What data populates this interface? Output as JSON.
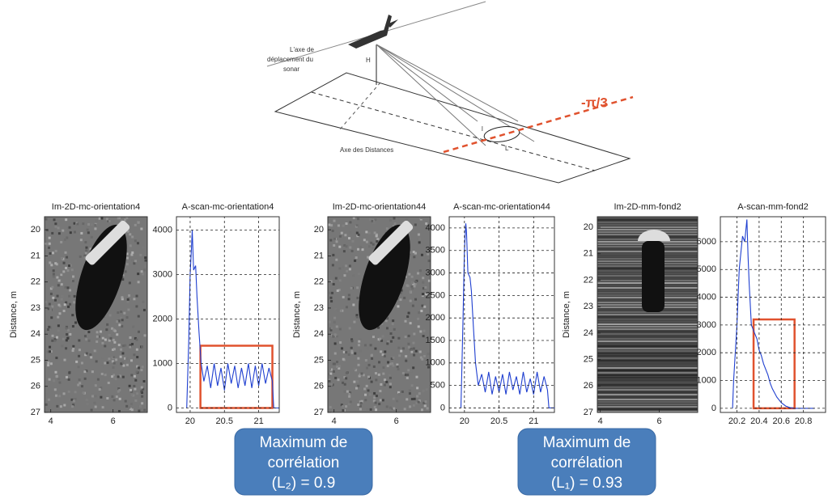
{
  "diagram": {
    "axis_label": [
      "L'axe de",
      "déplacement du",
      "sonar"
    ],
    "height_label": "H",
    "range_axis_label": "Axe des Distances",
    "length_label": "L",
    "width_label": "l",
    "angle_label": "-π/3"
  },
  "chart_data": [
    {
      "type": "image",
      "title": "Im-2D-mc-orientation4",
      "ylabel": "Distance, m",
      "yreversed": true,
      "ylim": [
        19.5,
        27
      ],
      "yticks": [
        20,
        21,
        22,
        23,
        24,
        25,
        26,
        27
      ],
      "xlim": [
        3.8,
        7.1
      ],
      "xticks": [
        4,
        6
      ]
    },
    {
      "type": "line",
      "title": "A-scan-mc-orientation4",
      "grid": true,
      "color": "#1f3fd0",
      "x": [
        19.95,
        19.98,
        20.0,
        20.02,
        20.03,
        20.05,
        20.08,
        20.1,
        20.13,
        20.16,
        20.2,
        20.25,
        20.3,
        20.35,
        20.4,
        20.45,
        20.5,
        20.55,
        20.6,
        20.65,
        20.7,
        20.75,
        20.8,
        20.85,
        20.9,
        20.95,
        21.0,
        21.05,
        21.1,
        21.15,
        21.2,
        21.22,
        21.3
      ],
      "values": [
        0,
        1500,
        3000,
        3600,
        4000,
        3100,
        3200,
        2500,
        1700,
        1000,
        600,
        950,
        450,
        1000,
        500,
        900,
        400,
        1000,
        550,
        950,
        450,
        900,
        500,
        1000,
        450,
        950,
        500,
        1000,
        550,
        900,
        600,
        0,
        0
      ],
      "xlim": [
        19.8,
        21.3
      ],
      "xticks": [
        20,
        20.5,
        21
      ],
      "ylim": [
        -100,
        4300
      ],
      "yticks": [
        0,
        1000,
        2000,
        3000,
        4000
      ],
      "highlight": {
        "color": "#e0522e",
        "x": [
          20.15,
          21.2
        ],
        "y": [
          0,
          1400
        ]
      }
    },
    {
      "type": "image",
      "title": "Im-2D-mc-orientation44",
      "ylabel": "Distance, m",
      "yreversed": true,
      "ylim": [
        19.5,
        27
      ],
      "yticks": [
        20,
        21,
        22,
        23,
        24,
        25,
        26,
        27
      ],
      "xlim": [
        3.8,
        7.1
      ],
      "xticks": [
        4,
        6
      ]
    },
    {
      "type": "line",
      "title": "A-scan-mc-orientation44",
      "grid": true,
      "color": "#1f3fd0",
      "x": [
        19.95,
        19.98,
        20.0,
        20.02,
        20.03,
        20.05,
        20.08,
        20.1,
        20.13,
        20.16,
        20.2,
        20.25,
        20.3,
        20.35,
        20.4,
        20.45,
        20.5,
        20.55,
        20.6,
        20.65,
        20.7,
        20.75,
        20.8,
        20.85,
        20.9,
        20.95,
        21.0,
        21.05,
        21.1,
        21.15,
        21.2,
        21.22,
        21.3
      ],
      "values": [
        0,
        2000,
        3500,
        4100,
        3900,
        3000,
        2900,
        2600,
        1800,
        1000,
        500,
        750,
        350,
        800,
        300,
        700,
        350,
        750,
        300,
        800,
        400,
        700,
        300,
        800,
        350,
        650,
        300,
        800,
        350,
        700,
        400,
        0,
        0
      ],
      "xlim": [
        19.78,
        21.3
      ],
      "xticks": [
        20,
        20.5,
        21
      ],
      "ylim": [
        -100,
        4250
      ],
      "yticks": [
        0,
        500,
        1000,
        1500,
        2000,
        2500,
        3000,
        3500,
        4000
      ]
    },
    {
      "type": "image",
      "title": "Im-2D-mm-fond2",
      "ylabel": "Distance, m",
      "yreversed": true,
      "ylim": [
        19.6,
        27
      ],
      "yticks": [
        20,
        21,
        22,
        23,
        24,
        25,
        26,
        27
      ],
      "xlim": [
        3.9,
        7.3
      ],
      "xticks": [
        4,
        6
      ]
    },
    {
      "type": "line",
      "title": "A-scan-mm-fond2",
      "grid": true,
      "color": "#1f3fd0",
      "x": [
        20.16,
        20.17,
        20.2,
        20.22,
        20.25,
        20.27,
        20.29,
        20.3,
        20.31,
        20.33,
        20.34,
        20.36,
        20.38,
        20.4,
        20.42,
        20.44,
        20.46,
        20.48,
        20.5,
        20.52,
        20.56,
        20.6,
        20.64,
        20.68,
        20.72,
        20.9
      ],
      "values": [
        0,
        1000,
        3000,
        5000,
        6200,
        6000,
        6800,
        5500,
        4500,
        3000,
        2900,
        2700,
        2500,
        2100,
        1900,
        1600,
        1400,
        1200,
        900,
        700,
        400,
        200,
        80,
        20,
        0,
        0
      ],
      "xlim": [
        20.05,
        21.0
      ],
      "xticks": [
        20.2,
        20.4,
        20.6,
        20.8
      ],
      "ylim": [
        -150,
        6900
      ],
      "yticks": [
        0,
        1000,
        2000,
        3000,
        4000,
        5000,
        6000
      ],
      "highlight": {
        "color": "#e0522e",
        "x": [
          20.35,
          20.72
        ],
        "y": [
          0,
          3200
        ]
      }
    }
  ],
  "callouts": [
    {
      "lines": [
        "Maximum de",
        "corrélation",
        "(L₂) = 0.9"
      ]
    },
    {
      "lines": [
        "Maximum de",
        "corrélation",
        "(L₁) = 0.93"
      ]
    }
  ]
}
